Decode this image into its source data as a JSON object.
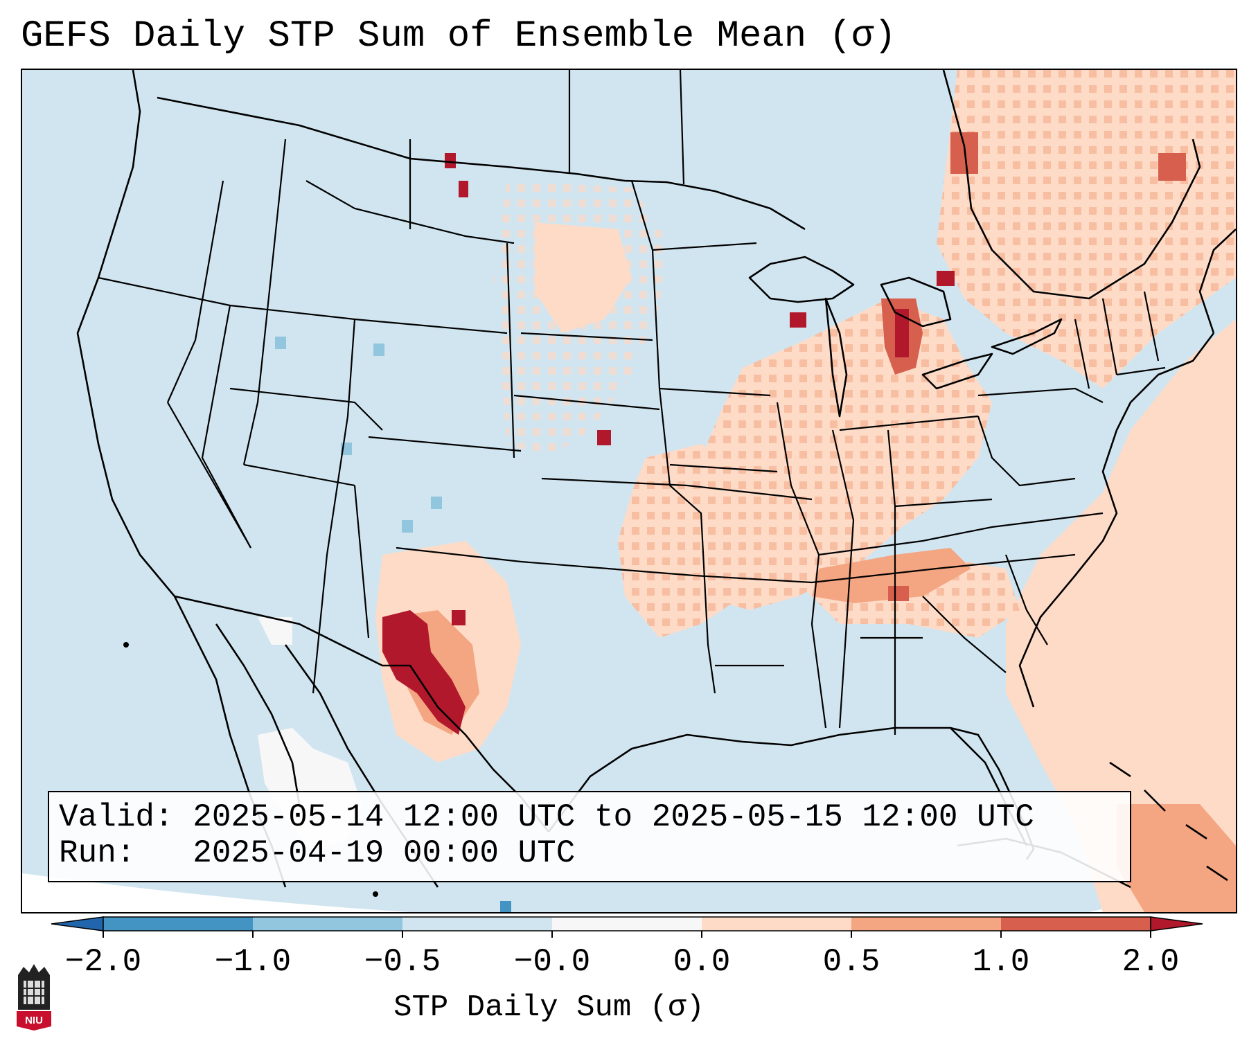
{
  "title": "GEFS Daily STP Sum of Ensemble Mean (σ)",
  "info": {
    "valid_label": "Valid:",
    "valid_range": "2025-05-14 12:00 UTC to 2025-05-15 12:00 UTC",
    "run_label": "Run:",
    "run_time": "2025-04-19 00:00 UTC"
  },
  "colorbar": {
    "label": "STP Daily Sum (σ)",
    "ticks": [
      "−2.0",
      "−1.0",
      "−0.5",
      "−0.0",
      "0.0",
      "0.5",
      "1.0",
      "2.0"
    ],
    "bin_colors": [
      "#4393c3",
      "#92c5de",
      "#d1e5f0",
      "#fddbc7",
      "#f4a582",
      "#d6604d"
    ],
    "under_color": "#2166ac",
    "over_color": "#b2182b",
    "neutral_color": "#f7f7f7"
  },
  "logo": {
    "text": "NIU"
  },
  "map": {
    "projection": "Lambert Conformal (CONUS)",
    "ocean_color": "#d1e5f0",
    "hotspots": [
      "Southern New Mexico / West Texas",
      "Lower Michigan",
      "Ohio Valley / Kentucky",
      "Northern Plains",
      "Atlantic offshore"
    ]
  }
}
